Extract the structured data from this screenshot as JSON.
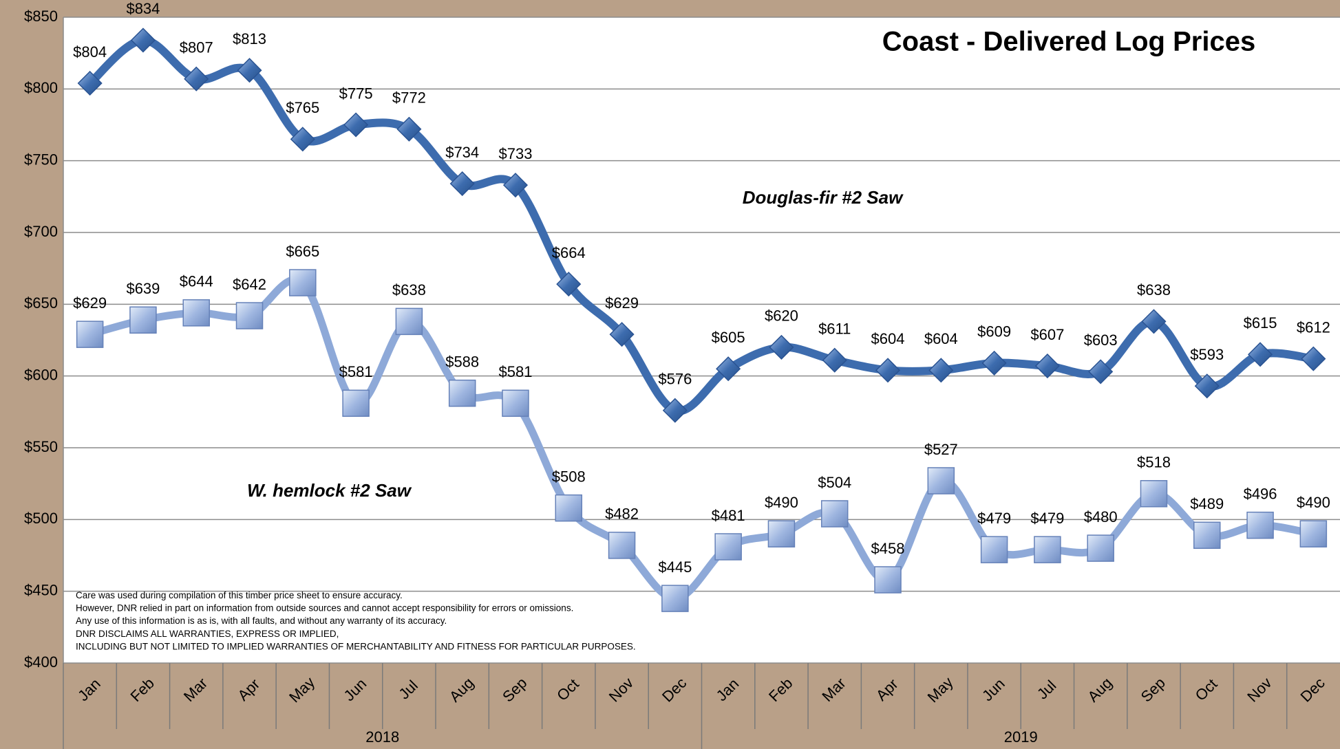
{
  "chart_data": {
    "type": "line",
    "title": "Coast - Delivered Log Prices",
    "categories": [
      "Jan",
      "Feb",
      "Mar",
      "Apr",
      "May",
      "Jun",
      "Jul",
      "Aug",
      "Sep",
      "Oct",
      "Nov",
      "Dec",
      "Jan",
      "Feb",
      "Mar",
      "Apr",
      "May",
      "Jun",
      "Jul",
      "Aug",
      "Sep",
      "Oct",
      "Nov",
      "Dec"
    ],
    "category_groups": [
      "2018",
      "2019"
    ],
    "series": [
      {
        "name": "Douglas-fir #2 Saw",
        "color": "#3d6cae",
        "marker": "diamond",
        "values": [
          804,
          834,
          807,
          813,
          765,
          775,
          772,
          734,
          733,
          664,
          629,
          576,
          605,
          620,
          611,
          604,
          604,
          609,
          607,
          603,
          638,
          593,
          615,
          612
        ],
        "value_labels": [
          "$804",
          "$834",
          "$807",
          "$813",
          "$765",
          "$775",
          "$772",
          "$734",
          "$733",
          "$664",
          "$629",
          "$576",
          "$605",
          "$620",
          "$611",
          "$604",
          "$604",
          "$609",
          "$607",
          "$603",
          "$638",
          "$593",
          "$615",
          "$612"
        ]
      },
      {
        "name": "W. hemlock  #2 Saw",
        "color": "#8ea9d8",
        "marker": "square",
        "values": [
          629,
          639,
          644,
          642,
          665,
          581,
          638,
          588,
          581,
          508,
          482,
          445,
          481,
          490,
          504,
          458,
          527,
          479,
          479,
          480,
          518,
          489,
          496,
          490
        ],
        "value_labels": [
          "$629",
          "$639",
          "$644",
          "$642",
          "$665",
          "$581",
          "$638",
          "$588",
          "$581",
          "$508",
          "$482",
          "$445",
          "$481",
          "$490",
          "$504",
          "$458",
          "$527",
          "$479",
          "$479",
          "$480",
          "$518",
          "$489",
          "$496",
          "$490"
        ]
      }
    ],
    "ylim": [
      400,
      850
    ],
    "yticks": [
      {
        "value": 400,
        "label": "$400"
      },
      {
        "value": 450,
        "label": "$450"
      },
      {
        "value": 500,
        "label": "$500"
      },
      {
        "value": 550,
        "label": "$550"
      },
      {
        "value": 600,
        "label": "$600"
      },
      {
        "value": 650,
        "label": "$650"
      },
      {
        "value": 700,
        "label": "$700"
      },
      {
        "value": 750,
        "label": "$750"
      },
      {
        "value": 800,
        "label": "$800"
      },
      {
        "value": 850,
        "label": "$850"
      }
    ],
    "grid": true,
    "annotations": [
      "Care was used during compilation of this timber price sheet to ensure accuracy.",
      "However, DNR relied in part on information from outside sources and cannot accept responsibility for errors or omissions.",
      "Any use of this information is as is, with all faults, and without any warranty of its accuracy.",
      "DNR DISCLAIMS ALL WARRANTIES, EXPRESS OR IMPLIED,",
      "INCLUDING BUT NOT LIMITED TO IMPLIED WARRANTIES OF MERCHANTABILITY AND FITNESS FOR PARTICULAR PURPOSES."
    ]
  }
}
